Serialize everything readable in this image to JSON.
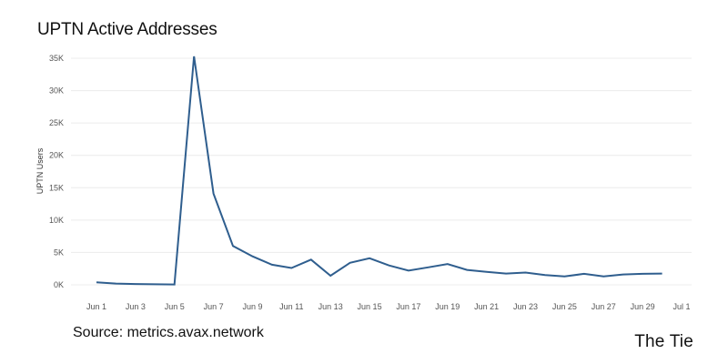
{
  "header": {
    "title": "UPTN Active Addresses"
  },
  "footer": {
    "source": "Source: metrics.avax.network",
    "brand": "The Tie"
  },
  "chart_data": {
    "type": "line",
    "title": "UPTN Active Addresses",
    "xlabel": "",
    "ylabel": "UPTN Users",
    "grid": true,
    "line_color": "#2f5e8e",
    "ylim": [
      0,
      36000
    ],
    "yticks": [
      0,
      5000,
      10000,
      15000,
      20000,
      25000,
      30000,
      35000
    ],
    "ytick_labels": [
      "0K",
      "5K",
      "10K",
      "15K",
      "20K",
      "25K",
      "30K",
      "35K"
    ],
    "xticks": [
      "Jun 1",
      "Jun 3",
      "Jun 5",
      "Jun 7",
      "Jun 9",
      "Jun 11",
      "Jun 13",
      "Jun 15",
      "Jun 17",
      "Jun 19",
      "Jun 21",
      "Jun 23",
      "Jun 25",
      "Jun 27",
      "Jun 29",
      "Jul 1"
    ],
    "x": [
      "Jun 1",
      "Jun 2",
      "Jun 3",
      "Jun 4",
      "Jun 5",
      "Jun 6",
      "Jun 7",
      "Jun 8",
      "Jun 9",
      "Jun 10",
      "Jun 11",
      "Jun 12",
      "Jun 13",
      "Jun 14",
      "Jun 15",
      "Jun 16",
      "Jun 17",
      "Jun 18",
      "Jun 19",
      "Jun 20",
      "Jun 21",
      "Jun 22",
      "Jun 23",
      "Jun 24",
      "Jun 25",
      "Jun 26",
      "Jun 27",
      "Jun 28",
      "Jun 29",
      "Jun 30"
    ],
    "series": [
      {
        "values": [
          400,
          200,
          120,
          80,
          50,
          35300,
          14100,
          6000,
          4400,
          3100,
          2600,
          3900,
          1400,
          3400,
          4100,
          3000,
          2200,
          2700,
          3200,
          2300,
          2000,
          1750,
          1900,
          1500,
          1300,
          1700,
          1300,
          1600,
          1700,
          1750
        ]
      }
    ]
  }
}
